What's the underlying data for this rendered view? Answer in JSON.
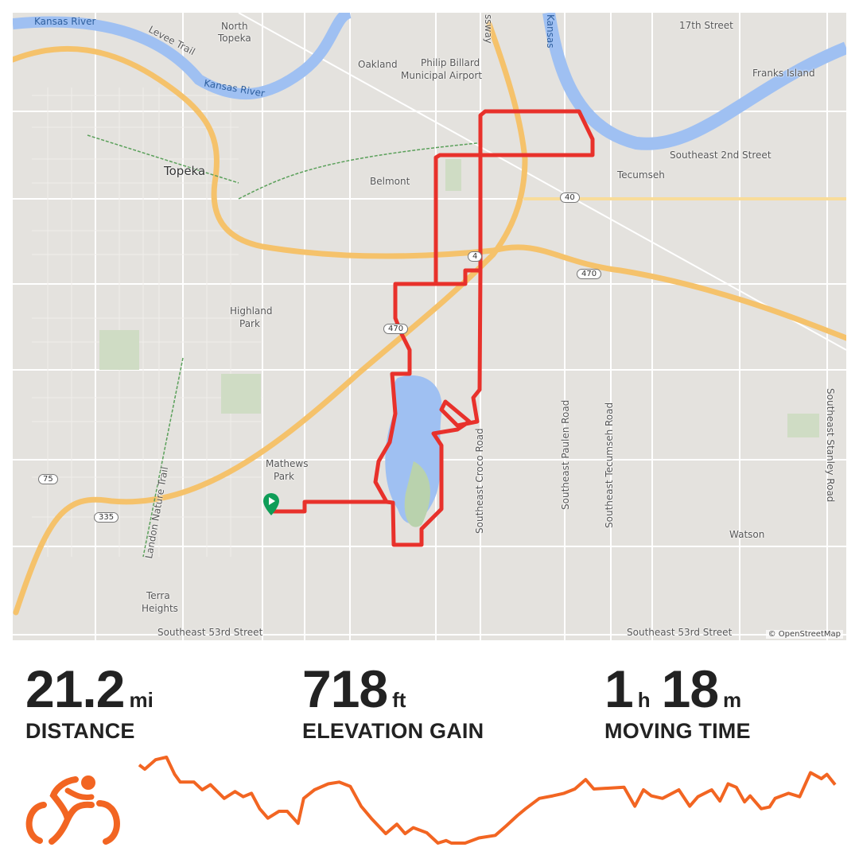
{
  "map": {
    "labels": [
      "Kansas River",
      "Levee Trail",
      "North",
      "Topeka",
      "Oakland",
      "Philip Billard",
      "Municipal Airport",
      "Kansas River",
      "Topeka",
      "Belmont",
      "Tecumseh",
      "Highland",
      "Park",
      "Mathews",
      "Park",
      "Terra",
      "Heights",
      "17th Street",
      "Franks Island",
      "Southeast 2nd Street",
      "Southeast 53rd Street",
      "Southeast 53rd Street",
      "Southeast Croco Road",
      "Southeast Paulen Road",
      "Southeast Tecumseh Road",
      "Southeast Stanley Road",
      "Landon Nature Trail",
      "Watson",
      "ssway",
      "Kansas"
    ],
    "shields": [
      "40",
      "470",
      "470",
      "4",
      "75",
      "335"
    ],
    "attribution": "© OpenStreetMap",
    "route_color": "#e8312b",
    "start_marker_color": "#0f9d58"
  },
  "stats": {
    "distance": {
      "value": "21.2",
      "unit": "mi",
      "label": "DISTANCE"
    },
    "elevation": {
      "value": "718",
      "unit": "ft",
      "label": "ELEVATION GAIN"
    },
    "moving_time": {
      "hours": "1",
      "hours_unit": "h",
      "minutes": "18",
      "minutes_unit": "m",
      "label": "MOVING TIME"
    }
  },
  "activity_icon": "cyclist-icon",
  "accent_color": "#f26522",
  "chart_data": {
    "type": "line",
    "xlabel": "",
    "ylabel": "",
    "x_units": "mi",
    "y_units": "percent of elevation range",
    "xlim": [
      0,
      21.2
    ],
    "ylim": [
      0,
      100
    ],
    "grid": false,
    "points": [
      [
        0,
        91
      ],
      [
        0.17,
        86
      ],
      [
        0.5,
        97
      ],
      [
        0.83,
        100
      ],
      [
        1.08,
        80
      ],
      [
        1.25,
        71
      ],
      [
        1.67,
        71
      ],
      [
        1.92,
        62
      ],
      [
        2.17,
        68
      ],
      [
        2.59,
        52
      ],
      [
        2.92,
        60
      ],
      [
        3.17,
        54
      ],
      [
        3.42,
        58
      ],
      [
        3.67,
        40
      ],
      [
        3.92,
        29
      ],
      [
        4.26,
        37
      ],
      [
        4.51,
        37
      ],
      [
        4.84,
        23
      ],
      [
        5.01,
        52
      ],
      [
        5.34,
        62
      ],
      [
        5.76,
        69
      ],
      [
        6.09,
        71
      ],
      [
        6.43,
        66
      ],
      [
        6.76,
        43
      ],
      [
        7.09,
        28
      ],
      [
        7.51,
        11
      ],
      [
        7.85,
        22
      ],
      [
        8.1,
        11
      ],
      [
        8.35,
        18
      ],
      [
        8.76,
        12
      ],
      [
        9.1,
        0
      ],
      [
        9.35,
        3
      ],
      [
        9.51,
        0
      ],
      [
        9.93,
        0
      ],
      [
        10.35,
        6
      ],
      [
        10.85,
        9
      ],
      [
        11.18,
        20
      ],
      [
        11.52,
        32
      ],
      [
        11.77,
        40
      ],
      [
        12.19,
        52
      ],
      [
        12.6,
        55
      ],
      [
        12.94,
        58
      ],
      [
        13.27,
        63
      ],
      [
        13.6,
        74
      ],
      [
        13.85,
        63
      ],
      [
        14.77,
        65
      ],
      [
        15.1,
        43
      ],
      [
        15.36,
        62
      ],
      [
        15.6,
        55
      ],
      [
        15.94,
        52
      ],
      [
        16.44,
        62
      ],
      [
        16.77,
        43
      ],
      [
        17.02,
        54
      ],
      [
        17.44,
        62
      ],
      [
        17.69,
        49
      ],
      [
        17.94,
        69
      ],
      [
        18.19,
        65
      ],
      [
        18.44,
        48
      ],
      [
        18.61,
        55
      ],
      [
        18.95,
        40
      ],
      [
        19.2,
        42
      ],
      [
        19.37,
        52
      ],
      [
        19.78,
        58
      ],
      [
        20.12,
        54
      ],
      [
        20.45,
        82
      ],
      [
        20.78,
        75
      ],
      [
        20.95,
        80
      ],
      [
        21.2,
        68
      ]
    ]
  }
}
